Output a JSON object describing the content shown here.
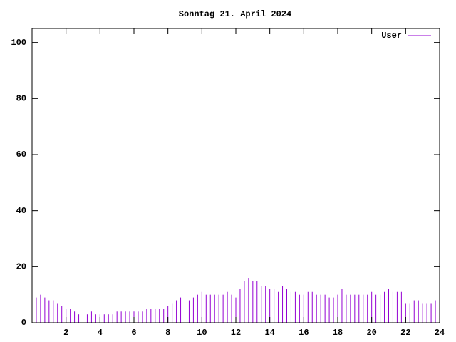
{
  "chart_data": {
    "type": "impulse",
    "title": "Sonntag 21. April 2024",
    "x": [
      0,
      0.25,
      0.5,
      0.75,
      1,
      1.25,
      1.5,
      1.75,
      2,
      2.25,
      2.5,
      2.75,
      3,
      3.25,
      3.5,
      3.75,
      4,
      4.25,
      4.5,
      4.75,
      5,
      5.25,
      5.5,
      5.75,
      6,
      6.25,
      6.5,
      6.75,
      7,
      7.25,
      7.5,
      7.75,
      8,
      8.25,
      8.5,
      8.75,
      9,
      9.25,
      9.5,
      9.75,
      10,
      10.25,
      10.5,
      10.75,
      11,
      11.25,
      11.5,
      11.75,
      12,
      12.25,
      12.5,
      12.75,
      13,
      13.25,
      13.5,
      13.75,
      14,
      14.25,
      14.5,
      14.75,
      15,
      15.25,
      15.5,
      15.75,
      16,
      16.25,
      16.5,
      16.75,
      17,
      17.25,
      17.5,
      17.75,
      18,
      18.25,
      18.5,
      18.75,
      19,
      19.25,
      19.5,
      19.75,
      20,
      20.25,
      20.5,
      20.75,
      21,
      21.25,
      21.5,
      21.75,
      22,
      22.25,
      22.5,
      22.75,
      23,
      23.25,
      23.5,
      23.75
    ],
    "series": [
      {
        "name": "User",
        "color": "#9400d3",
        "values": [
          9,
          9,
          10,
          9,
          8,
          8,
          7,
          6,
          5,
          5,
          4,
          3,
          3,
          3,
          4,
          3,
          3,
          3,
          3,
          3,
          4,
          4,
          4,
          4,
          4,
          4,
          4,
          5,
          5,
          5,
          5,
          5,
          6,
          7,
          8,
          9,
          9,
          8,
          9,
          10,
          11,
          10,
          10,
          10,
          10,
          10,
          11,
          10,
          9,
          12,
          15,
          16,
          15,
          15,
          13,
          13,
          12,
          12,
          11,
          13,
          12,
          11,
          11,
          10,
          10,
          11,
          11,
          10,
          10,
          10,
          9,
          9,
          10,
          12,
          10,
          10,
          10,
          10,
          10,
          10,
          11,
          10,
          10,
          11,
          12,
          11,
          11,
          11,
          7,
          7,
          8,
          8,
          7,
          7,
          7,
          8
        ]
      }
    ],
    "xlim": [
      0,
      24
    ],
    "xticks": [
      2,
      4,
      6,
      8,
      10,
      12,
      14,
      16,
      18,
      20,
      22,
      24
    ],
    "ylim": [
      0,
      105
    ],
    "yticks": [
      0,
      20,
      40,
      60,
      80,
      100
    ]
  }
}
